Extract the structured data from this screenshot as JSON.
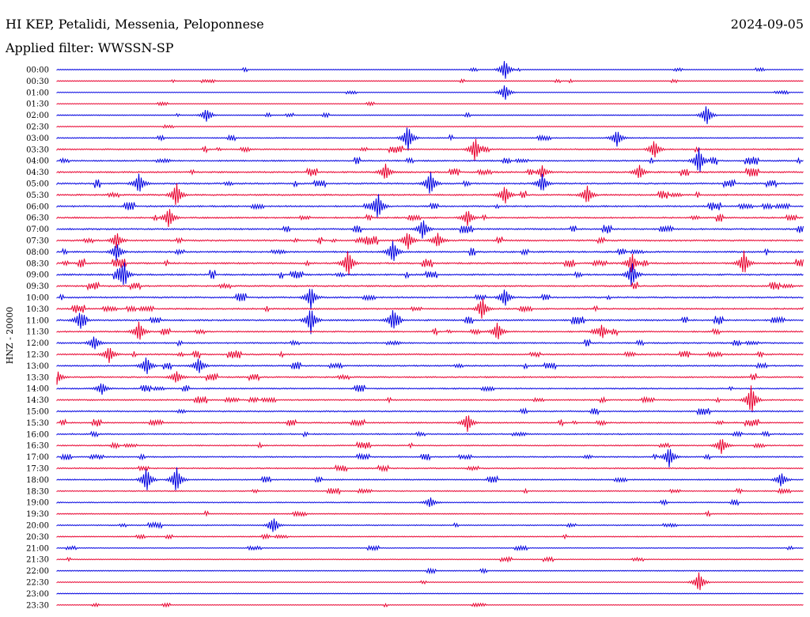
{
  "header": {
    "station": "HI KEP, Petalidi, Messenia, Peloponnese",
    "date": "2024-09-05",
    "filter": "Applied filter: WWSSN-SP"
  },
  "chart_data": {
    "type": "line",
    "title": "HI KEP, Petalidi, Messenia, Peloponnese",
    "subtitle": "Applied filter: WWSSN-SP",
    "ylabel": "HNZ - 20000",
    "colors": [
      "#0000e0",
      "#e8002e"
    ],
    "row_labels": [
      "00:00",
      "00:30",
      "01:00",
      "01:30",
      "02:00",
      "02:30",
      "03:00",
      "03:30",
      "04:00",
      "04:30",
      "05:00",
      "05:30",
      "06:00",
      "06:30",
      "07:00",
      "07:30",
      "08:00",
      "08:30",
      "09:00",
      "09:30",
      "10:00",
      "10:30",
      "11:00",
      "11:30",
      "12:00",
      "12:30",
      "13:00",
      "13:30",
      "14:00",
      "14:30",
      "15:00",
      "15:30",
      "16:00",
      "16:30",
      "17:00",
      "17:30",
      "18:00",
      "18:30",
      "19:00",
      "19:30",
      "20:00",
      "20:30",
      "21:00",
      "21:30",
      "22:00",
      "22:30",
      "23:00",
      "23:30"
    ],
    "activity": [
      0.1,
      0.1,
      0.1,
      0.1,
      0.2,
      0.2,
      0.5,
      0.7,
      0.8,
      0.9,
      0.9,
      0.9,
      0.9,
      0.9,
      0.9,
      0.9,
      1.0,
      1.0,
      1.0,
      0.9,
      0.9,
      0.9,
      0.9,
      0.8,
      0.8,
      0.8,
      0.8,
      0.8,
      0.7,
      0.7,
      0.7,
      0.7,
      0.7,
      0.6,
      0.6,
      0.6,
      0.6,
      0.5,
      0.5,
      0.4,
      0.4,
      0.4,
      0.3,
      0.3,
      0.3,
      0.2,
      0.2,
      0.1
    ],
    "events": [
      {
        "row": 0,
        "t": 0.6,
        "amp": 1.0
      },
      {
        "row": 2,
        "t": 0.6,
        "amp": 0.8
      },
      {
        "row": 4,
        "t": 0.2,
        "amp": 0.5
      },
      {
        "row": 4,
        "t": 0.87,
        "amp": 1.0
      },
      {
        "row": 6,
        "t": 0.47,
        "amp": 1.3
      },
      {
        "row": 6,
        "t": 0.75,
        "amp": 0.8
      },
      {
        "row": 7,
        "t": 0.56,
        "amp": 1.2
      },
      {
        "row": 7,
        "t": 0.8,
        "amp": 0.9
      },
      {
        "row": 8,
        "t": 0.86,
        "amp": 1.2
      },
      {
        "row": 9,
        "t": 0.44,
        "amp": 0.8
      },
      {
        "row": 9,
        "t": 0.65,
        "amp": 0.6
      },
      {
        "row": 9,
        "t": 0.78,
        "amp": 0.7
      },
      {
        "row": 10,
        "t": 0.11,
        "amp": 1.0
      },
      {
        "row": 10,
        "t": 0.5,
        "amp": 1.2
      },
      {
        "row": 10,
        "t": 0.65,
        "amp": 0.9
      },
      {
        "row": 11,
        "t": 0.16,
        "amp": 1.2
      },
      {
        "row": 11,
        "t": 0.6,
        "amp": 0.9
      },
      {
        "row": 11,
        "t": 0.71,
        "amp": 0.9
      },
      {
        "row": 12,
        "t": 0.43,
        "amp": 1.3
      },
      {
        "row": 13,
        "t": 0.15,
        "amp": 1.0
      },
      {
        "row": 13,
        "t": 0.55,
        "amp": 0.8
      },
      {
        "row": 14,
        "t": 0.49,
        "amp": 1.0
      },
      {
        "row": 15,
        "t": 0.08,
        "amp": 0.8
      },
      {
        "row": 15,
        "t": 0.47,
        "amp": 0.9
      },
      {
        "row": 15,
        "t": 0.51,
        "amp": 0.7
      },
      {
        "row": 16,
        "t": 0.08,
        "amp": 0.9
      },
      {
        "row": 16,
        "t": 0.45,
        "amp": 1.1
      },
      {
        "row": 17,
        "t": 0.39,
        "amp": 1.3
      },
      {
        "row": 17,
        "t": 0.77,
        "amp": 1.0
      },
      {
        "row": 17,
        "t": 0.92,
        "amp": 1.2
      },
      {
        "row": 18,
        "t": 0.09,
        "amp": 0.9
      },
      {
        "row": 18,
        "t": 0.77,
        "amp": 1.2
      },
      {
        "row": 20,
        "t": 0.34,
        "amp": 1.1
      },
      {
        "row": 20,
        "t": 0.6,
        "amp": 0.9
      },
      {
        "row": 21,
        "t": 0.57,
        "amp": 0.9
      },
      {
        "row": 22,
        "t": 0.03,
        "amp": 0.7
      },
      {
        "row": 22,
        "t": 0.34,
        "amp": 1.3
      },
      {
        "row": 22,
        "t": 0.45,
        "amp": 1.0
      },
      {
        "row": 23,
        "t": 0.11,
        "amp": 1.0
      },
      {
        "row": 23,
        "t": 0.59,
        "amp": 0.9
      },
      {
        "row": 23,
        "t": 0.73,
        "amp": 0.7
      },
      {
        "row": 24,
        "t": 0.05,
        "amp": 0.7
      },
      {
        "row": 25,
        "t": 0.07,
        "amp": 0.8
      },
      {
        "row": 26,
        "t": 0.12,
        "amp": 0.9
      },
      {
        "row": 26,
        "t": 0.19,
        "amp": 0.8
      },
      {
        "row": 27,
        "t": 0.0,
        "amp": 0.7
      },
      {
        "row": 27,
        "t": 0.16,
        "amp": 0.6
      },
      {
        "row": 28,
        "t": 0.06,
        "amp": 0.6
      },
      {
        "row": 29,
        "t": 0.93,
        "amp": 1.5
      },
      {
        "row": 31,
        "t": 0.55,
        "amp": 0.9
      },
      {
        "row": 33,
        "t": 0.89,
        "amp": 0.8
      },
      {
        "row": 34,
        "t": 0.82,
        "amp": 1.0
      },
      {
        "row": 36,
        "t": 0.12,
        "amp": 1.2
      },
      {
        "row": 36,
        "t": 0.16,
        "amp": 1.3
      },
      {
        "row": 36,
        "t": 0.97,
        "amp": 0.7
      },
      {
        "row": 38,
        "t": 0.5,
        "amp": 0.5
      },
      {
        "row": 40,
        "t": 0.29,
        "amp": 0.6
      },
      {
        "row": 45,
        "t": 0.86,
        "amp": 1.0
      }
    ]
  }
}
